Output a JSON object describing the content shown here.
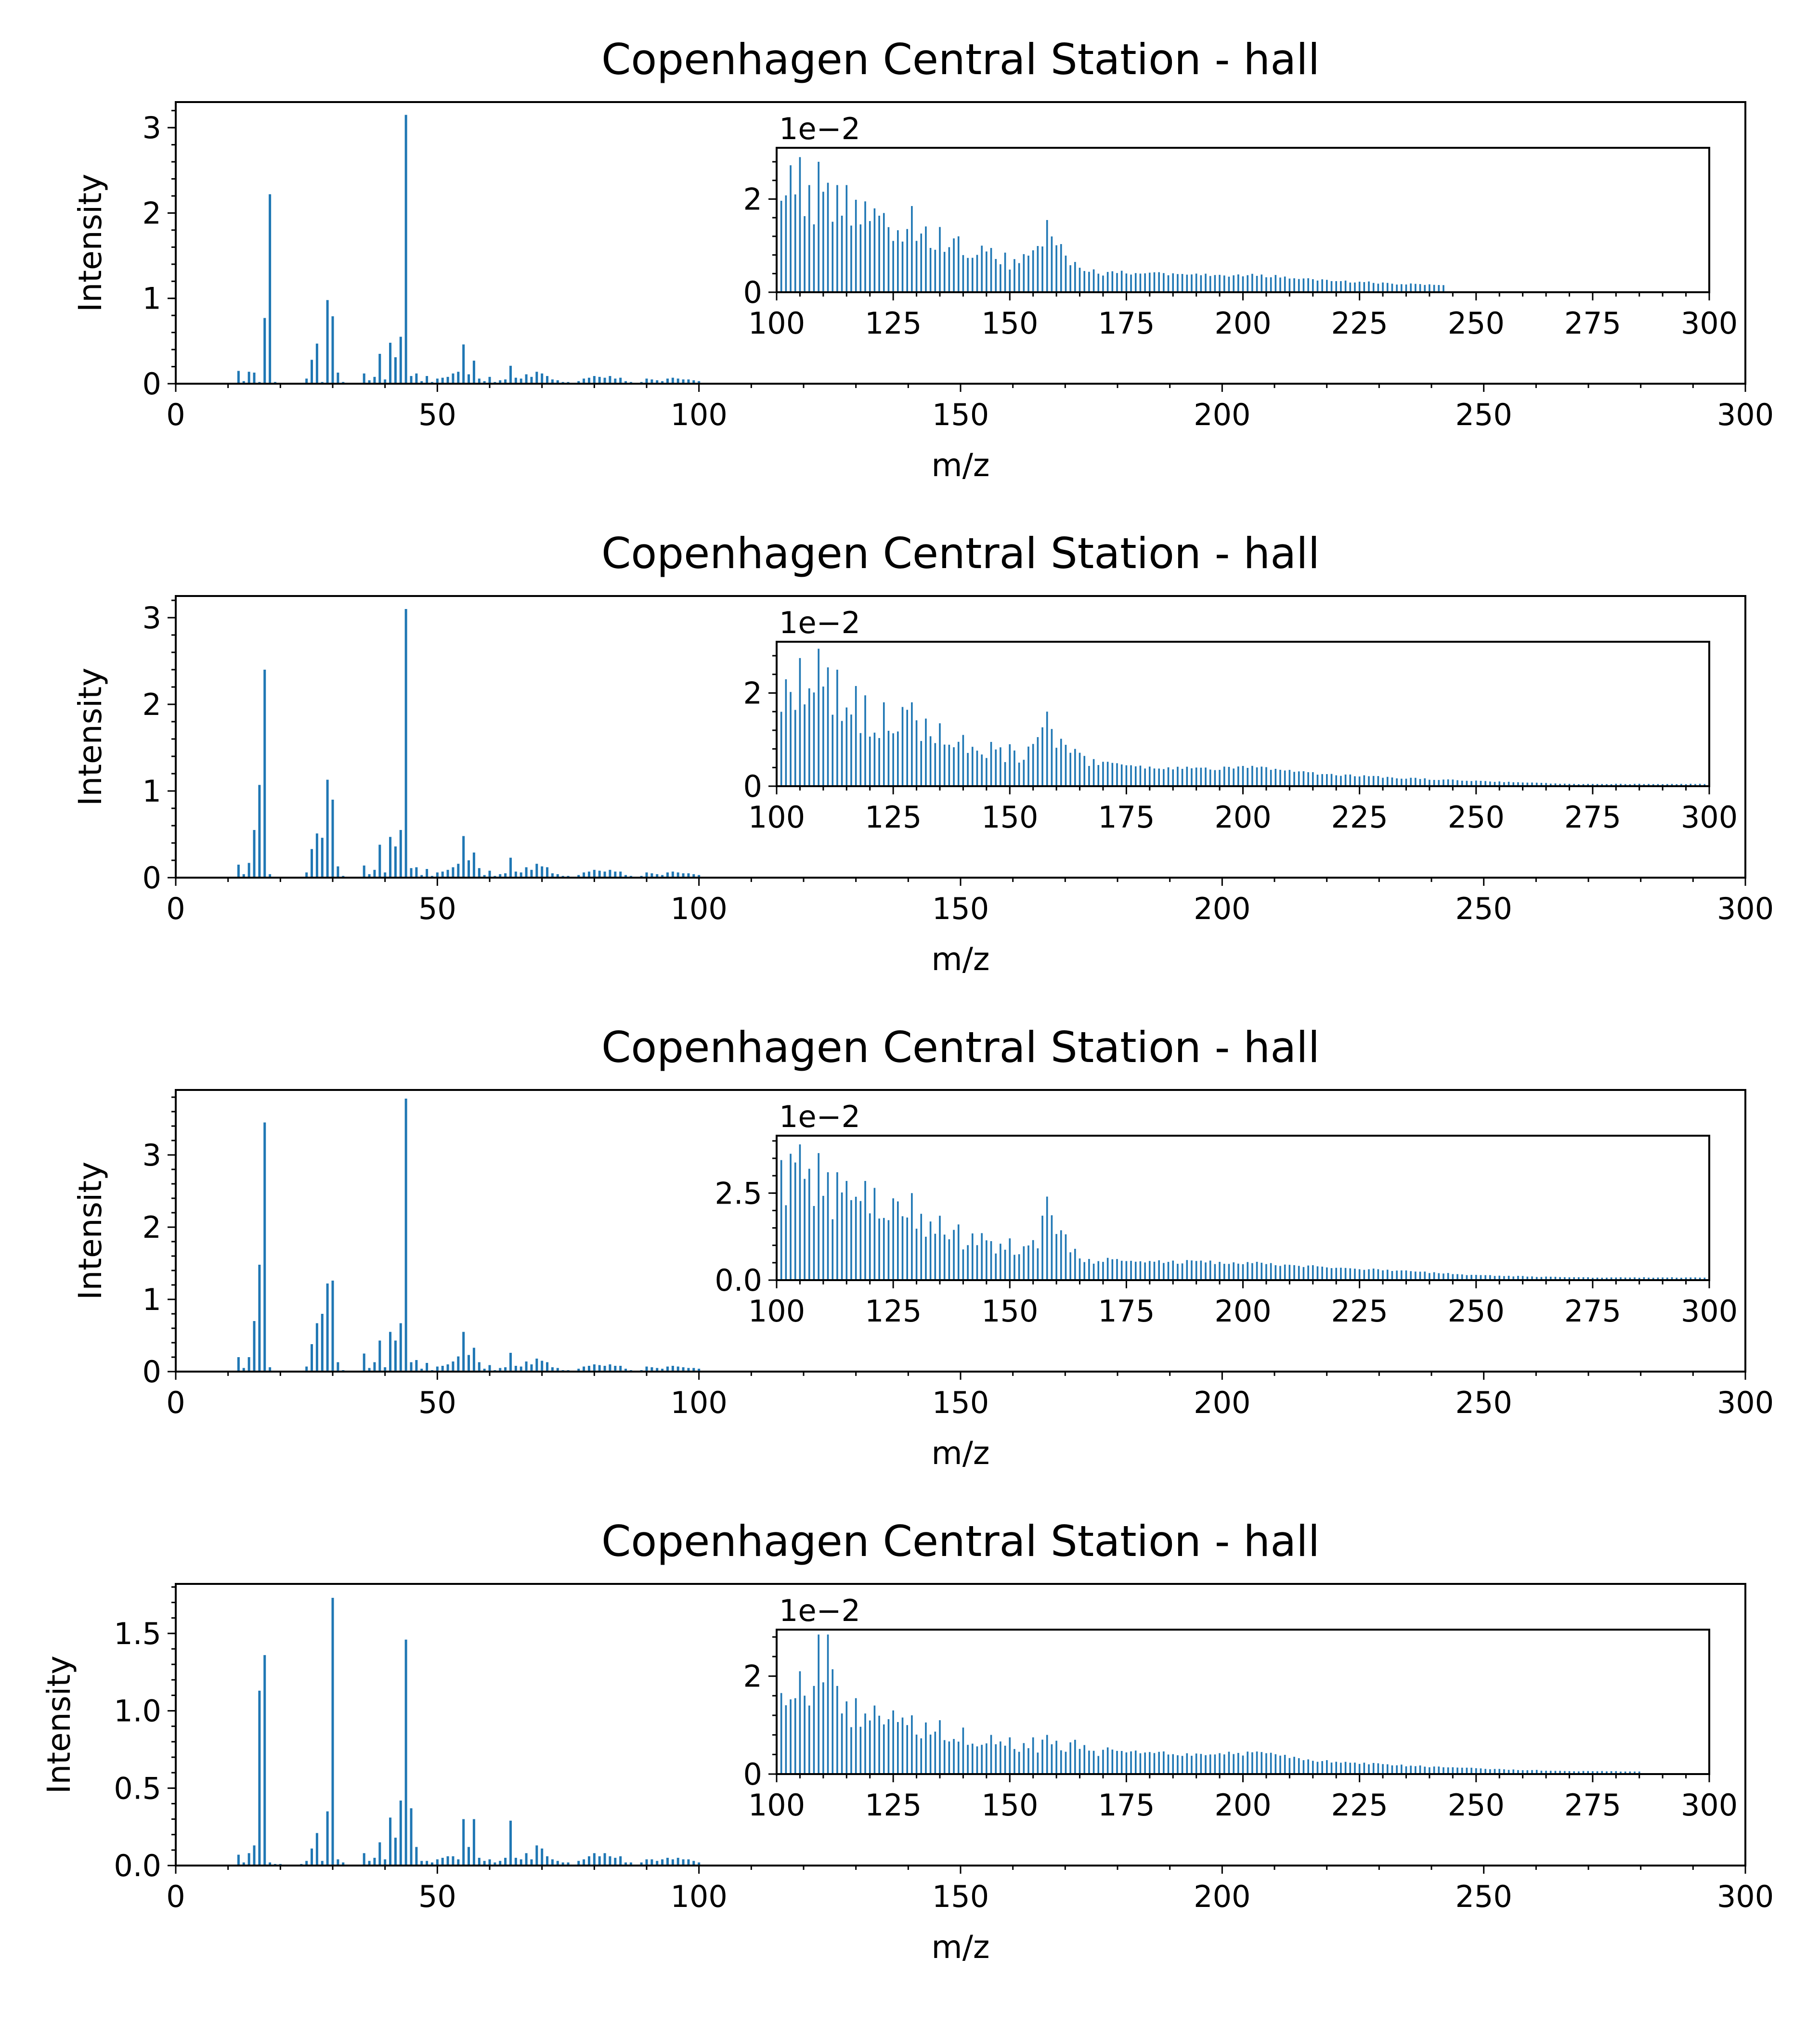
{
  "colors": {
    "bar": "#1f77b4",
    "axis": "#000000",
    "background": "#ffffff"
  },
  "chart_data": [
    {
      "type": "bar",
      "title": "Copenhagen Central Station - hall",
      "xlabel": "m/z",
      "ylabel": "Intensity",
      "xlim": [
        0,
        300
      ],
      "ylim": [
        0,
        3.3
      ],
      "xticks": [
        "0",
        "50",
        "100",
        "150",
        "200",
        "250",
        "300"
      ],
      "yticks": [
        "0",
        "1",
        "2",
        "3"
      ],
      "x": [
        12,
        13,
        14,
        15,
        16,
        17,
        18,
        19,
        20,
        24,
        25,
        26,
        27,
        28,
        29,
        30,
        31,
        32,
        36,
        37,
        38,
        39,
        40,
        41,
        42,
        43,
        44,
        45,
        46,
        47,
        48,
        49,
        50,
        51,
        52,
        53,
        54,
        55,
        56,
        57,
        58,
        59,
        60,
        61,
        62,
        63,
        64,
        65,
        66,
        67,
        68,
        69,
        70,
        71,
        72,
        73,
        74,
        75,
        77,
        78,
        79,
        80,
        81,
        82,
        83,
        84,
        85,
        86,
        87,
        89,
        90,
        91,
        92,
        93,
        94,
        95,
        96,
        97,
        98,
        99,
        100
      ],
      "values": [
        0.15,
        0.03,
        0.14,
        0.13,
        0.02,
        0.77,
        2.22,
        0.02,
        0.01,
        0.01,
        0.06,
        0.28,
        0.47,
        0.02,
        0.98,
        0.79,
        0.13,
        0.02,
        0.12,
        0.04,
        0.08,
        0.35,
        0.05,
        0.48,
        0.31,
        0.55,
        3.15,
        0.09,
        0.12,
        0.03,
        0.09,
        0.02,
        0.06,
        0.07,
        0.08,
        0.12,
        0.14,
        0.46,
        0.11,
        0.27,
        0.06,
        0.03,
        0.08,
        0.02,
        0.04,
        0.05,
        0.21,
        0.07,
        0.06,
        0.11,
        0.08,
        0.14,
        0.12,
        0.09,
        0.05,
        0.04,
        0.02,
        0.02,
        0.03,
        0.06,
        0.07,
        0.09,
        0.08,
        0.07,
        0.09,
        0.06,
        0.07,
        0.03,
        0.02,
        0.02,
        0.06,
        0.05,
        0.04,
        0.03,
        0.06,
        0.07,
        0.06,
        0.05,
        0.05,
        0.04,
        0.03
      ],
      "inset": {
        "scale_label": "1e−2",
        "xlim": [
          100,
          300
        ],
        "ylim": [
          0,
          3.1
        ],
        "xticks": [
          "100",
          "125",
          "150",
          "175",
          "200",
          "225",
          "250",
          "275",
          "300"
        ],
        "yticks": [
          "0",
          "2"
        ],
        "tail_end": 243,
        "peaks": [
          [
            105,
            2.9
          ],
          [
            107,
            2.3
          ],
          [
            109,
            2.8
          ],
          [
            111,
            2.35
          ],
          [
            113,
            2.3
          ],
          [
            115,
            2.3
          ],
          [
            119,
            1.95
          ],
          [
            121,
            1.8
          ],
          [
            123,
            1.7
          ],
          [
            129,
            1.85
          ],
          [
            135,
            1.4
          ],
          [
            139,
            1.2
          ],
          [
            144,
            1.0
          ],
          [
            146,
            0.95
          ],
          [
            149,
            0.85
          ],
          [
            155,
            0.9
          ],
          [
            158,
            1.55
          ],
          [
            164,
            0.65
          ],
          [
            172,
            0.45
          ],
          [
            180,
            0.42
          ],
          [
            190,
            0.4
          ],
          [
            204,
            0.38
          ],
          [
            214,
            0.3
          ],
          [
            222,
            0.25
          ],
          [
            231,
            0.2
          ],
          [
            240,
            0.17
          ]
        ]
      }
    },
    {
      "type": "bar",
      "title": "Copenhagen Central Station - hall",
      "xlabel": "m/z",
      "ylabel": "Intensity",
      "xlim": [
        0,
        300
      ],
      "ylim": [
        0,
        3.25
      ],
      "xticks": [
        "0",
        "50",
        "100",
        "150",
        "200",
        "250",
        "300"
      ],
      "yticks": [
        "0",
        "1",
        "2",
        "3"
      ],
      "x": [
        12,
        13,
        14,
        15,
        16,
        17,
        18,
        19,
        20,
        24,
        25,
        26,
        27,
        28,
        29,
        30,
        31,
        32,
        36,
        37,
        38,
        39,
        40,
        41,
        42,
        43,
        44,
        45,
        46,
        47,
        48,
        49,
        50,
        51,
        52,
        53,
        54,
        55,
        56,
        57,
        58,
        59,
        60,
        61,
        62,
        63,
        64,
        65,
        66,
        67,
        68,
        69,
        70,
        71,
        72,
        73,
        74,
        75,
        77,
        78,
        79,
        80,
        81,
        82,
        83,
        84,
        85,
        86,
        87,
        89,
        90,
        91,
        92,
        93,
        94,
        95,
        96,
        97,
        98,
        99,
        100
      ],
      "values": [
        0.15,
        0.04,
        0.17,
        0.55,
        1.07,
        2.4,
        0.04,
        0.01,
        0.01,
        0.01,
        0.06,
        0.33,
        0.51,
        0.46,
        1.13,
        0.9,
        0.13,
        0.02,
        0.14,
        0.04,
        0.09,
        0.38,
        0.06,
        0.47,
        0.36,
        0.55,
        3.1,
        0.11,
        0.12,
        0.03,
        0.1,
        0.02,
        0.06,
        0.07,
        0.09,
        0.12,
        0.16,
        0.48,
        0.2,
        0.29,
        0.11,
        0.03,
        0.08,
        0.02,
        0.04,
        0.05,
        0.23,
        0.07,
        0.06,
        0.12,
        0.09,
        0.16,
        0.13,
        0.12,
        0.05,
        0.04,
        0.02,
        0.02,
        0.03,
        0.06,
        0.07,
        0.09,
        0.08,
        0.07,
        0.09,
        0.07,
        0.07,
        0.03,
        0.02,
        0.02,
        0.06,
        0.05,
        0.04,
        0.03,
        0.06,
        0.07,
        0.06,
        0.05,
        0.05,
        0.04,
        0.03
      ],
      "inset": {
        "scale_label": "1e−2",
        "xlim": [
          100,
          300
        ],
        "ylim": [
          0,
          3.1
        ],
        "xticks": [
          "100",
          "125",
          "150",
          "175",
          "200",
          "225",
          "250",
          "275",
          "300"
        ],
        "yticks": [
          "0",
          "2"
        ],
        "tail_end": 300,
        "peaks": [
          [
            105,
            2.75
          ],
          [
            107,
            2.1
          ],
          [
            109,
            2.95
          ],
          [
            111,
            2.55
          ],
          [
            113,
            2.5
          ],
          [
            117,
            2.15
          ],
          [
            119,
            1.95
          ],
          [
            123,
            1.8
          ],
          [
            127,
            1.7
          ],
          [
            129,
            1.8
          ],
          [
            135,
            1.35
          ],
          [
            140,
            1.1
          ],
          [
            146,
            0.95
          ],
          [
            150,
            0.9
          ],
          [
            154,
            0.85
          ],
          [
            158,
            1.6
          ],
          [
            164,
            0.8
          ],
          [
            172,
            0.5
          ],
          [
            180,
            0.42
          ],
          [
            190,
            0.4
          ],
          [
            204,
            0.42
          ],
          [
            214,
            0.3
          ],
          [
            222,
            0.25
          ],
          [
            231,
            0.2
          ],
          [
            250,
            0.12
          ],
          [
            270,
            0.05
          ]
        ]
      }
    },
    {
      "type": "bar",
      "title": "Copenhagen Central Station - hall",
      "xlabel": "m/z",
      "ylabel": "Intensity",
      "xlim": [
        0,
        300
      ],
      "ylim": [
        0,
        3.9
      ],
      "xticks": [
        "0",
        "50",
        "100",
        "150",
        "200",
        "250",
        "300"
      ],
      "yticks": [
        "0",
        "1",
        "2",
        "3"
      ],
      "x": [
        12,
        13,
        14,
        15,
        16,
        17,
        18,
        19,
        20,
        24,
        25,
        26,
        27,
        28,
        29,
        30,
        31,
        32,
        36,
        37,
        38,
        39,
        40,
        41,
        42,
        43,
        44,
        45,
        46,
        47,
        48,
        49,
        50,
        51,
        52,
        53,
        54,
        55,
        56,
        57,
        58,
        59,
        60,
        61,
        62,
        63,
        64,
        65,
        66,
        67,
        68,
        69,
        70,
        71,
        72,
        73,
        74,
        75,
        77,
        78,
        79,
        80,
        81,
        82,
        83,
        84,
        85,
        86,
        87,
        89,
        90,
        91,
        92,
        93,
        94,
        95,
        96,
        97,
        98,
        99,
        100
      ],
      "values": [
        0.2,
        0.05,
        0.2,
        0.7,
        1.48,
        3.45,
        0.06,
        0.01,
        0.01,
        0.01,
        0.07,
        0.38,
        0.67,
        0.8,
        1.22,
        1.26,
        0.13,
        0.02,
        0.25,
        0.05,
        0.13,
        0.43,
        0.06,
        0.55,
        0.43,
        0.67,
        3.78,
        0.13,
        0.16,
        0.04,
        0.12,
        0.02,
        0.07,
        0.08,
        0.1,
        0.14,
        0.21,
        0.55,
        0.23,
        0.33,
        0.13,
        0.04,
        0.09,
        0.02,
        0.05,
        0.06,
        0.26,
        0.08,
        0.07,
        0.14,
        0.1,
        0.18,
        0.15,
        0.13,
        0.06,
        0.05,
        0.02,
        0.02,
        0.04,
        0.07,
        0.08,
        0.1,
        0.09,
        0.08,
        0.1,
        0.08,
        0.08,
        0.04,
        0.02,
        0.02,
        0.07,
        0.06,
        0.05,
        0.04,
        0.07,
        0.08,
        0.07,
        0.06,
        0.05,
        0.05,
        0.04
      ],
      "inset": {
        "scale_label": "1e−2",
        "xlim": [
          100,
          300
        ],
        "ylim": [
          0,
          4.15
        ],
        "xticks": [
          "100",
          "125",
          "150",
          "175",
          "200",
          "225",
          "250",
          "275",
          "300"
        ],
        "yticks": [
          "0.0",
          "2.5"
        ],
        "yticks_values": [
          0,
          2.5
        ],
        "tail_end": 300,
        "peaks": [
          [
            105,
            3.9
          ],
          [
            107,
            3.2
          ],
          [
            109,
            3.65
          ],
          [
            111,
            3.1
          ],
          [
            113,
            3.1
          ],
          [
            115,
            2.85
          ],
          [
            119,
            2.85
          ],
          [
            121,
            2.65
          ],
          [
            125,
            2.35
          ],
          [
            129,
            2.5
          ],
          [
            135,
            1.85
          ],
          [
            139,
            1.6
          ],
          [
            144,
            1.35
          ],
          [
            150,
            1.2
          ],
          [
            155,
            1.15
          ],
          [
            158,
            2.4
          ],
          [
            164,
            0.9
          ],
          [
            172,
            0.6
          ],
          [
            180,
            0.55
          ],
          [
            190,
            0.55
          ],
          [
            204,
            0.5
          ],
          [
            214,
            0.42
          ],
          [
            222,
            0.35
          ],
          [
            231,
            0.3
          ],
          [
            250,
            0.15
          ],
          [
            270,
            0.08
          ]
        ]
      }
    },
    {
      "type": "bar",
      "title": "Copenhagen Central Station - hall",
      "xlabel": "m/z",
      "ylabel": "Intensity",
      "xlim": [
        0,
        300
      ],
      "ylim": [
        0,
        1.82
      ],
      "xticks": [
        "0",
        "50",
        "100",
        "150",
        "200",
        "250",
        "300"
      ],
      "yticks": [
        "0.0",
        "0.5",
        "1.0",
        "1.5"
      ],
      "yticks_values": [
        0,
        0.5,
        1.0,
        1.5
      ],
      "x": [
        12,
        13,
        14,
        15,
        16,
        17,
        18,
        19,
        20,
        24,
        25,
        26,
        27,
        28,
        29,
        30,
        31,
        32,
        36,
        37,
        38,
        39,
        40,
        41,
        42,
        43,
        44,
        45,
        46,
        47,
        48,
        49,
        50,
        51,
        52,
        53,
        54,
        55,
        56,
        57,
        58,
        59,
        60,
        61,
        62,
        63,
        64,
        65,
        66,
        67,
        68,
        69,
        70,
        71,
        72,
        73,
        74,
        75,
        77,
        78,
        79,
        80,
        81,
        82,
        83,
        84,
        85,
        86,
        87,
        89,
        90,
        91,
        92,
        93,
        94,
        95,
        96,
        97,
        98,
        99,
        100
      ],
      "values": [
        0.07,
        0.02,
        0.08,
        0.13,
        1.13,
        1.36,
        0.02,
        0.01,
        0.01,
        0.01,
        0.03,
        0.11,
        0.21,
        0.03,
        0.35,
        1.73,
        0.04,
        0.02,
        0.08,
        0.03,
        0.05,
        0.15,
        0.04,
        0.31,
        0.18,
        0.42,
        1.46,
        0.37,
        0.12,
        0.03,
        0.03,
        0.02,
        0.04,
        0.05,
        0.06,
        0.06,
        0.04,
        0.3,
        0.12,
        0.3,
        0.05,
        0.03,
        0.04,
        0.02,
        0.03,
        0.05,
        0.29,
        0.05,
        0.04,
        0.08,
        0.04,
        0.13,
        0.11,
        0.06,
        0.04,
        0.03,
        0.02,
        0.02,
        0.03,
        0.04,
        0.06,
        0.08,
        0.06,
        0.08,
        0.06,
        0.05,
        0.06,
        0.02,
        0.02,
        0.02,
        0.04,
        0.04,
        0.03,
        0.04,
        0.05,
        0.04,
        0.05,
        0.04,
        0.04,
        0.03,
        0.02
      ],
      "inset": {
        "scale_label": "1e−2",
        "xlim": [
          100,
          300
        ],
        "ylim": [
          0,
          2.95
        ],
        "xticks": [
          "100",
          "125",
          "150",
          "175",
          "200",
          "225",
          "250",
          "275",
          "300"
        ],
        "yticks": [
          "0",
          "2"
        ],
        "tail_end": 285,
        "peaks": [
          [
            105,
            2.1
          ],
          [
            107,
            1.4
          ],
          [
            109,
            2.85
          ],
          [
            111,
            2.85
          ],
          [
            113,
            1.8
          ],
          [
            117,
            1.55
          ],
          [
            121,
            1.4
          ],
          [
            125,
            1.3
          ],
          [
            129,
            1.2
          ],
          [
            135,
            1.1
          ],
          [
            140,
            0.95
          ],
          [
            146,
            0.8
          ],
          [
            150,
            0.75
          ],
          [
            155,
            0.75
          ],
          [
            158,
            0.8
          ],
          [
            164,
            0.7
          ],
          [
            172,
            0.5
          ],
          [
            180,
            0.45
          ],
          [
            190,
            0.42
          ],
          [
            204,
            0.45
          ],
          [
            214,
            0.3
          ],
          [
            222,
            0.25
          ],
          [
            231,
            0.2
          ],
          [
            250,
            0.12
          ],
          [
            270,
            0.06
          ]
        ]
      }
    }
  ]
}
